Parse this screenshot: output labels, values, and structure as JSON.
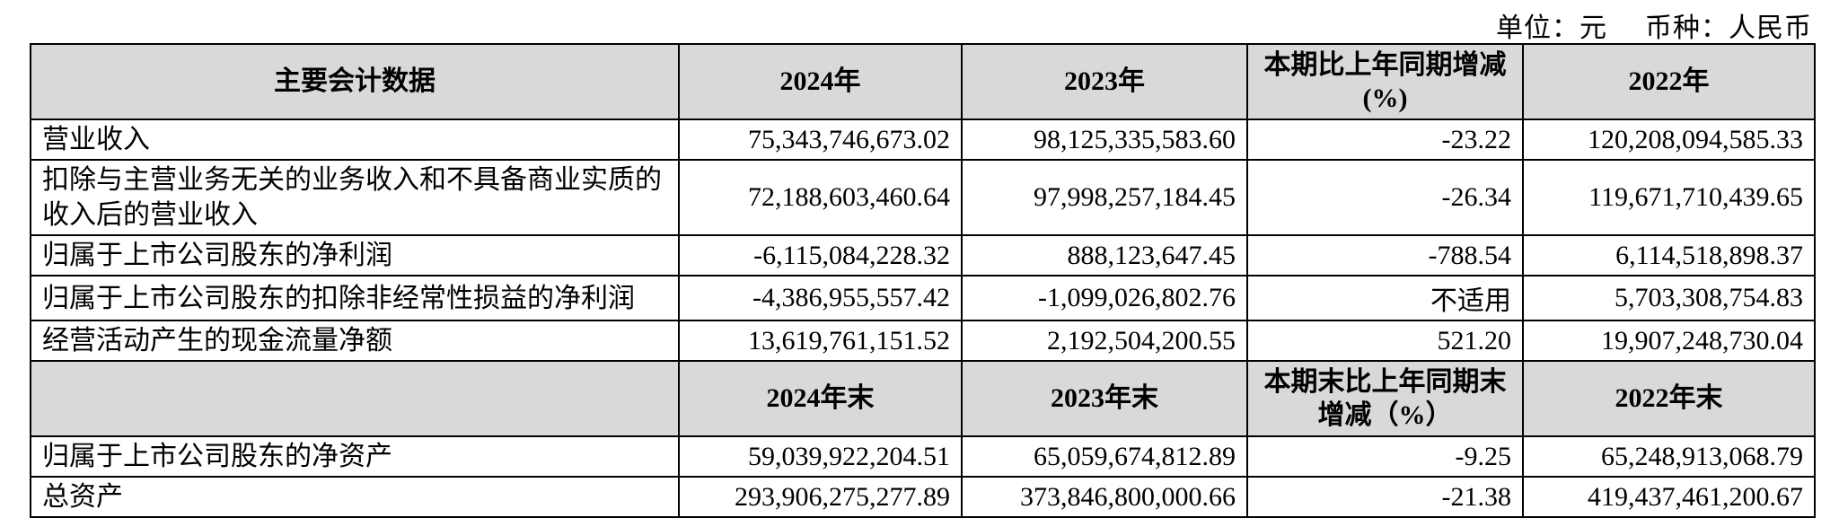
{
  "note": {
    "unit": "单位：元",
    "currency": "币种：人民币"
  },
  "colors": {
    "header_bg": "#d9d9d9",
    "border": "#000000",
    "page_bg": "#ffffff"
  },
  "table": {
    "header_annual": [
      "主要会计数据",
      "2024年",
      "2023年",
      "本期比上年同期增减\n(%)",
      "2022年"
    ],
    "rows_annual": [
      {
        "label": "营业收入",
        "y2024": "75,343,746,673.02",
        "y2023": "98,125,335,583.60",
        "change": "-23.22",
        "y2022": "120,208,094,585.33"
      },
      {
        "label": "扣除与主营业务无关的业务收入和不具备商业实质的收入后的营业收入",
        "y2024": "72,188,603,460.64",
        "y2023": "97,998,257,184.45",
        "change": "-26.34",
        "y2022": "119,671,710,439.65"
      },
      {
        "label": "归属于上市公司股东的净利润",
        "y2024": "-6,115,084,228.32",
        "y2023": "888,123,647.45",
        "change": "-788.54",
        "y2022": "6,114,518,898.37"
      },
      {
        "label": "归属于上市公司股东的扣除非经常性损益的净利润",
        "y2024": "-4,386,955,557.42",
        "y2023": "-1,099,026,802.76",
        "change": "不适用",
        "y2022": "5,703,308,754.83"
      },
      {
        "label": "经营活动产生的现金流量净额",
        "y2024": "13,619,761,151.52",
        "y2023": "2,192,504,200.55",
        "change": "521.20",
        "y2022": "19,907,248,730.04"
      }
    ],
    "header_period_end": [
      "",
      "2024年末",
      "2023年末",
      "本期末比上年同期末\n增减（%）",
      "2022年末"
    ],
    "rows_period_end": [
      {
        "label": "归属于上市公司股东的净资产",
        "y2024": "59,039,922,204.51",
        "y2023": "65,059,674,812.89",
        "change": "-9.25",
        "y2022": "65,248,913,068.79"
      },
      {
        "label": "总资产",
        "y2024": "293,906,275,277.89",
        "y2023": "373,846,800,000.66",
        "change": "-21.38",
        "y2022": "419,437,461,200.67"
      }
    ]
  }
}
